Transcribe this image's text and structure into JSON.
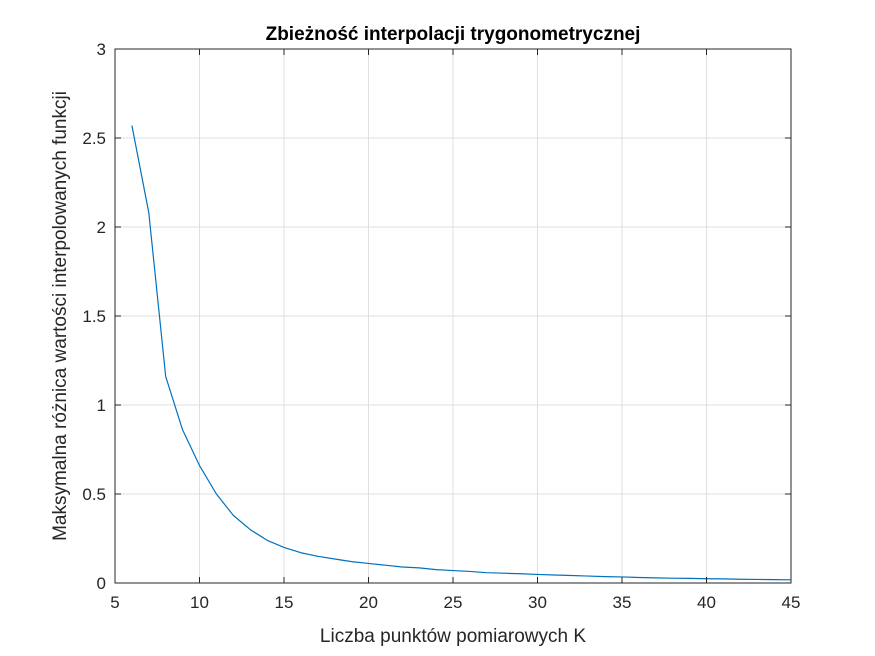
{
  "chart_data": {
    "type": "line",
    "title": "Zbieżność interpolacji trygonometrycznej",
    "xlabel": "Liczba punktów pomiarowych K",
    "ylabel": "Maksymalna różnica wartości interpolowanych funkcji",
    "xlim": [
      5,
      45
    ],
    "ylim": [
      0,
      3
    ],
    "xticks": [
      5,
      10,
      15,
      20,
      25,
      30,
      35,
      40,
      45
    ],
    "xtick_labels": [
      "5",
      "10",
      "15",
      "20",
      "25",
      "30",
      "35",
      "40",
      "45"
    ],
    "yticks": [
      0,
      0.5,
      1,
      1.5,
      2,
      2.5,
      3
    ],
    "ytick_labels": [
      "0",
      "0.5",
      "1",
      "1.5",
      "2",
      "2.5",
      "3"
    ],
    "grid": true,
    "series": [
      {
        "color": "#0072BD",
        "x": [
          6,
          7,
          8,
          9,
          10,
          11,
          12,
          13,
          14,
          15,
          16,
          17,
          18,
          19,
          20,
          21,
          22,
          23,
          24,
          25,
          26,
          27,
          28,
          29,
          30,
          31,
          32,
          33,
          34,
          35,
          36,
          37,
          38,
          39,
          40,
          41,
          42,
          43,
          44,
          45
        ],
        "y": [
          2.57,
          2.08,
          1.16,
          0.86,
          0.66,
          0.5,
          0.38,
          0.3,
          0.24,
          0.2,
          0.17,
          0.15,
          0.135,
          0.12,
          0.11,
          0.1,
          0.09,
          0.085,
          0.075,
          0.07,
          0.065,
          0.058,
          0.055,
          0.052,
          0.048,
          0.045,
          0.042,
          0.039,
          0.036,
          0.034,
          0.031,
          0.029,
          0.027,
          0.026,
          0.024,
          0.023,
          0.021,
          0.02,
          0.019,
          0.018
        ]
      }
    ]
  }
}
